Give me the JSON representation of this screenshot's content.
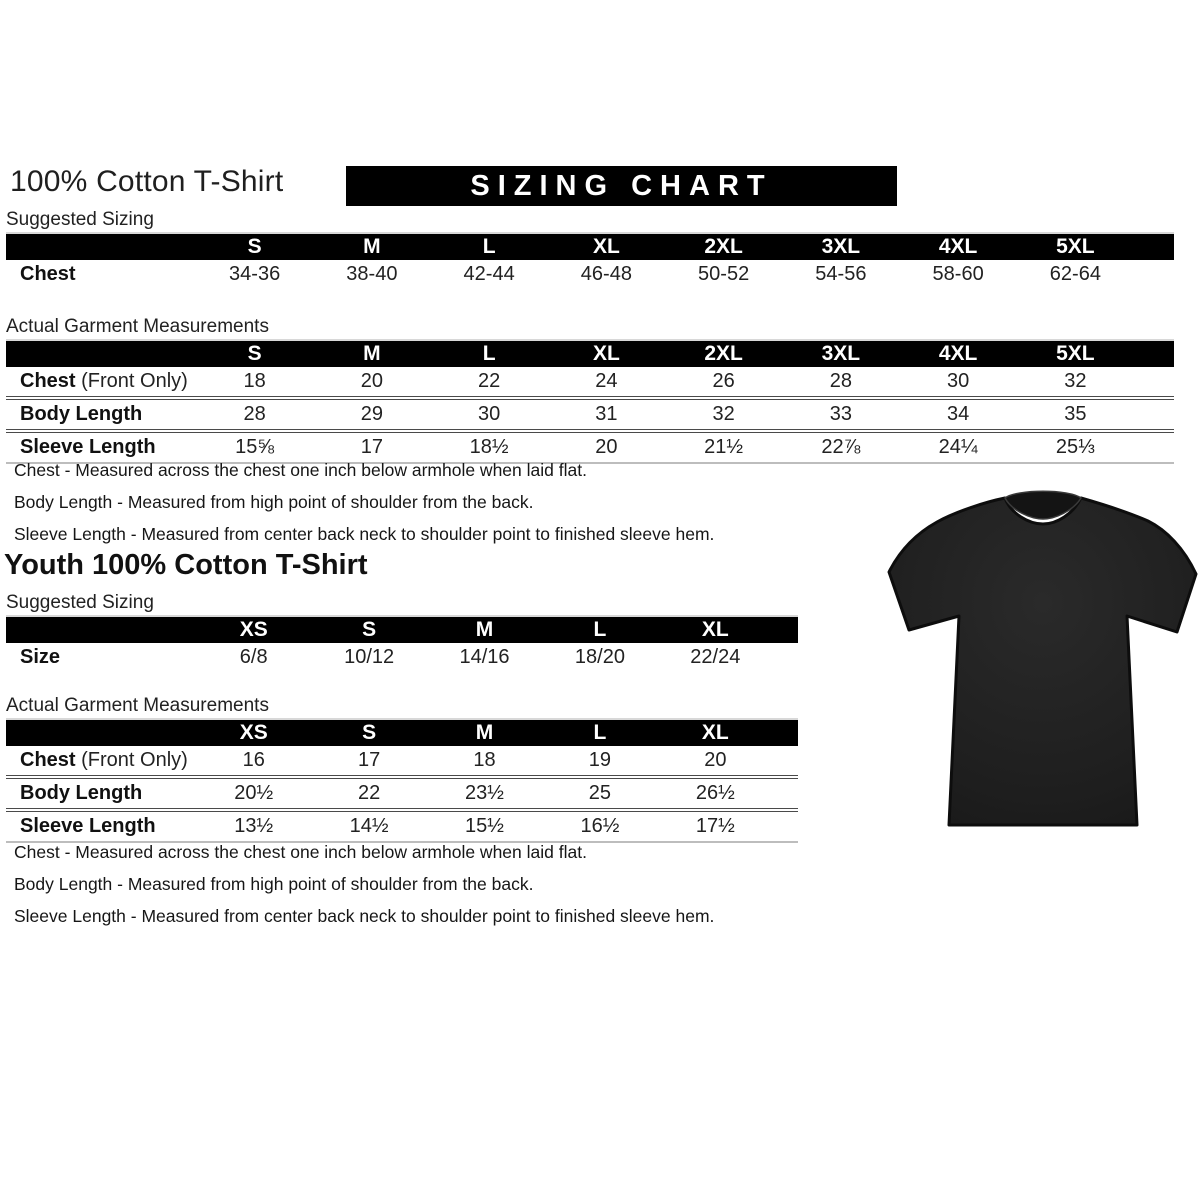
{
  "page": {
    "title": "100% Cotton T-Shirt",
    "banner": "SIZING CHART",
    "suggested_label": "Suggested Sizing",
    "actual_label": "Actual Garment Measurements",
    "youth_title": "Youth 100% Cotton T-Shirt"
  },
  "adult": {
    "suggested": {
      "columns": [
        "S",
        "M",
        "L",
        "XL",
        "2XL",
        "3XL",
        "4XL",
        "5XL"
      ],
      "rows": [
        {
          "label": "Chest",
          "values": [
            "34-36",
            "38-40",
            "42-44",
            "46-48",
            "50-52",
            "54-56",
            "58-60",
            "62-64"
          ]
        }
      ]
    },
    "measurements": {
      "columns": [
        "S",
        "M",
        "L",
        "XL",
        "2XL",
        "3XL",
        "4XL",
        "5XL"
      ],
      "rows": [
        {
          "label": "Chest",
          "suffix": " (Front Only)",
          "values": [
            "18",
            "20",
            "22",
            "24",
            "26",
            "28",
            "30",
            "32"
          ]
        },
        {
          "label": "Body Length",
          "values": [
            "28",
            "29",
            "30",
            "31",
            "32",
            "33",
            "34",
            "35"
          ]
        },
        {
          "label": "Sleeve Length",
          "values": [
            "15⅝",
            "17",
            "18½",
            "20",
            "21½",
            "22⅞",
            "24¼",
            "25⅓"
          ]
        }
      ]
    },
    "notes": [
      "Chest - Measured across the chest one inch below armhole when laid flat.",
      "Body Length - Measured from high point of shoulder from the back.",
      "Sleeve Length - Measured from center back neck to shoulder point to finished sleeve hem."
    ]
  },
  "youth": {
    "suggested": {
      "columns": [
        "XS",
        "S",
        "M",
        "L",
        "XL"
      ],
      "rows": [
        {
          "label": "Size",
          "values": [
            "6/8",
            "10/12",
            "14/16",
            "18/20",
            "22/24"
          ]
        }
      ]
    },
    "measurements": {
      "columns": [
        "XS",
        "S",
        "M",
        "L",
        "XL"
      ],
      "rows": [
        {
          "label": "Chest",
          "suffix": " (Front Only)",
          "values": [
            "16",
            "17",
            "18",
            "19",
            "20"
          ]
        },
        {
          "label": "Body Length",
          "values": [
            "20½",
            "22",
            "23½",
            "25",
            "26½"
          ]
        },
        {
          "label": "Sleeve Length",
          "values": [
            "13½",
            "14½",
            "15½",
            "16½",
            "17½"
          ]
        }
      ]
    },
    "notes": [
      "Chest - Measured across the chest one inch below armhole when laid flat.",
      "Body Length - Measured from high point of shoulder from the back.",
      "Sleeve Length - Measured from center back neck to shoulder point to finished sleeve hem."
    ]
  },
  "tshirt": {
    "body_color": "#1e1e1e",
    "edge_color": "#0d0d0d",
    "collar_color": "#141414"
  }
}
